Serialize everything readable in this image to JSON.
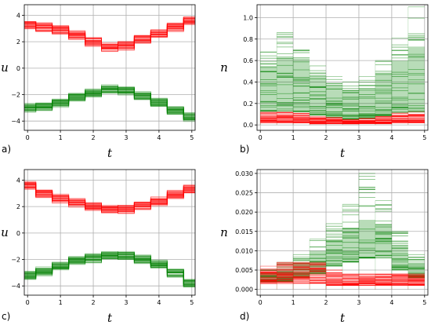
{
  "colors": {
    "red": "#ff0000",
    "green": "#008000",
    "grid": "#b0b0b0"
  },
  "chart_data": [
    {
      "type": "line",
      "panel_label": "a)",
      "xlabel": "t",
      "ylabel": "u",
      "xlim": [
        -0.1,
        5.1
      ],
      "ylim": [
        -4.7,
        4.8
      ],
      "xticks": [
        "0",
        "1",
        "2",
        "3",
        "4",
        "5"
      ],
      "yticks": [
        "−4",
        "−2",
        "0",
        "2",
        "4"
      ],
      "grid": true,
      "x": [
        0,
        0.5,
        1,
        1.5,
        2,
        2.5,
        3,
        3.5,
        4,
        4.5,
        5
      ],
      "series": [
        {
          "color": "red",
          "values": [
            3.3,
            3.1,
            2.9,
            2.5,
            2.0,
            1.6,
            1.7,
            2.2,
            2.6,
            3.1,
            3.6
          ],
          "spread": 0.5
        },
        {
          "color": "green",
          "values": [
            -3.0,
            -2.9,
            -2.6,
            -2.2,
            -1.9,
            -1.6,
            -1.7,
            -2.1,
            -2.6,
            -3.2,
            -3.7
          ],
          "spread": 0.5
        }
      ]
    },
    {
      "type": "bar",
      "panel_label": "b)",
      "xlabel": "t",
      "ylabel": "n",
      "xlim": [
        -0.1,
        5.1
      ],
      "ylim": [
        -0.05,
        1.12
      ],
      "xticks": [
        "0",
        "1",
        "2",
        "3",
        "4",
        "5"
      ],
      "yticks": [
        "0.0",
        "0.2",
        "0.4",
        "0.6",
        "0.8",
        "1.0"
      ],
      "grid": true,
      "bins": [
        0,
        0.5,
        1,
        1.5,
        2,
        2.5,
        3,
        3.5,
        4,
        4.5,
        5
      ],
      "series": [
        {
          "color": "green",
          "low": [
            0.12,
            0.13,
            0.12,
            0.09,
            0.07,
            0.05,
            0.06,
            0.08,
            0.11,
            0.12
          ],
          "high": [
            0.55,
            0.64,
            0.62,
            0.46,
            0.36,
            0.33,
            0.34,
            0.48,
            0.6,
            0.73
          ],
          "max": [
            0.68,
            0.86,
            0.7,
            0.55,
            0.45,
            0.4,
            0.45,
            0.6,
            0.81,
            1.1
          ]
        },
        {
          "color": "red",
          "low": [
            0.02,
            0.02,
            0.02,
            0.01,
            0.01,
            0.01,
            0.01,
            0.01,
            0.02,
            0.02
          ],
          "high": [
            0.1,
            0.1,
            0.09,
            0.07,
            0.05,
            0.04,
            0.05,
            0.07,
            0.09,
            0.1
          ],
          "max": [
            0.12,
            0.12,
            0.11,
            0.08,
            0.07,
            0.05,
            0.06,
            0.08,
            0.11,
            0.12
          ]
        }
      ]
    },
    {
      "type": "line",
      "panel_label": "c)",
      "xlabel": "t",
      "ylabel": "u",
      "xlim": [
        -0.1,
        5.1
      ],
      "ylim": [
        -4.7,
        4.8
      ],
      "xticks": [
        "0",
        "1",
        "2",
        "3",
        "4",
        "5"
      ],
      "yticks": [
        "−4",
        "−2",
        "0",
        "2",
        "4"
      ],
      "grid": true,
      "x": [
        0,
        0.5,
        1,
        1.5,
        2,
        2.5,
        3,
        3.5,
        4,
        4.5,
        5
      ],
      "series": [
        {
          "color": "red",
          "values": [
            3.6,
            3.0,
            2.6,
            2.3,
            2.0,
            1.8,
            1.8,
            2.1,
            2.4,
            2.9,
            3.3
          ],
          "spread": 0.5
        },
        {
          "color": "green",
          "values": [
            -3.2,
            -2.9,
            -2.5,
            -2.1,
            -1.9,
            -1.7,
            -1.7,
            -2.0,
            -2.4,
            -3.0,
            -3.8
          ],
          "spread": 0.5
        }
      ]
    },
    {
      "type": "bar",
      "panel_label": "d)",
      "xlabel": "t",
      "ylabel": "n",
      "xlim": [
        -0.1,
        5.1
      ],
      "ylim": [
        -0.0015,
        0.031
      ],
      "xticks": [
        "0",
        "1",
        "2",
        "3",
        "4",
        "5"
      ],
      "yticks": [
        "0.000",
        "0.005",
        "0.010",
        "0.015",
        "0.020",
        "0.025",
        "0.030"
      ],
      "grid": true,
      "bins": [
        0,
        0.5,
        1,
        1.5,
        2,
        2.5,
        3,
        3.5,
        4,
        4.5,
        5
      ],
      "series": [
        {
          "color": "green",
          "low": [
            0.002,
            0.002,
            0.003,
            0.004,
            0.006,
            0.007,
            0.008,
            0.008,
            0.005,
            0.003
          ],
          "high": [
            0.004,
            0.005,
            0.007,
            0.01,
            0.013,
            0.016,
            0.018,
            0.017,
            0.011,
            0.007
          ],
          "max": [
            0.005,
            0.007,
            0.009,
            0.013,
            0.017,
            0.022,
            0.03,
            0.023,
            0.015,
            0.009
          ]
        },
        {
          "color": "red",
          "low": [
            0.0015,
            0.0015,
            0.0015,
            0.0015,
            0.001,
            0.001,
            0.001,
            0.001,
            0.001,
            0.001
          ],
          "high": [
            0.005,
            0.006,
            0.006,
            0.006,
            0.004,
            0.004,
            0.003,
            0.004,
            0.004,
            0.004
          ],
          "max": [
            0.006,
            0.007,
            0.007,
            0.007,
            0.005,
            0.004,
            0.004,
            0.004,
            0.004,
            0.004
          ]
        }
      ]
    }
  ]
}
